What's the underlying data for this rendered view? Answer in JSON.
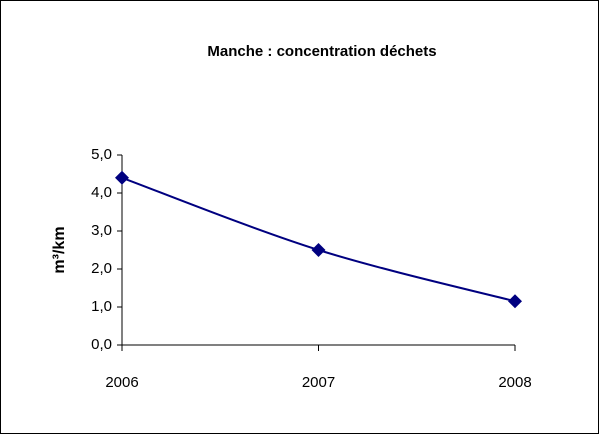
{
  "chart_data": {
    "type": "line",
    "title": "Manche : concentration déchets",
    "ylabel": "m³/km",
    "categories": [
      "2006",
      "2007",
      "2008"
    ],
    "values": [
      4.4,
      2.5,
      1.15
    ],
    "color": "#000080",
    "smooth": true,
    "ylim": [
      0,
      5
    ],
    "yticks": [
      {
        "value": 0,
        "label": "0,0"
      },
      {
        "value": 1,
        "label": "1,0"
      },
      {
        "value": 2,
        "label": "2,0"
      },
      {
        "value": 3,
        "label": "3,0"
      },
      {
        "value": 4,
        "label": "4,0"
      },
      {
        "value": 5,
        "label": "5,0"
      }
    ],
    "grid": false
  }
}
